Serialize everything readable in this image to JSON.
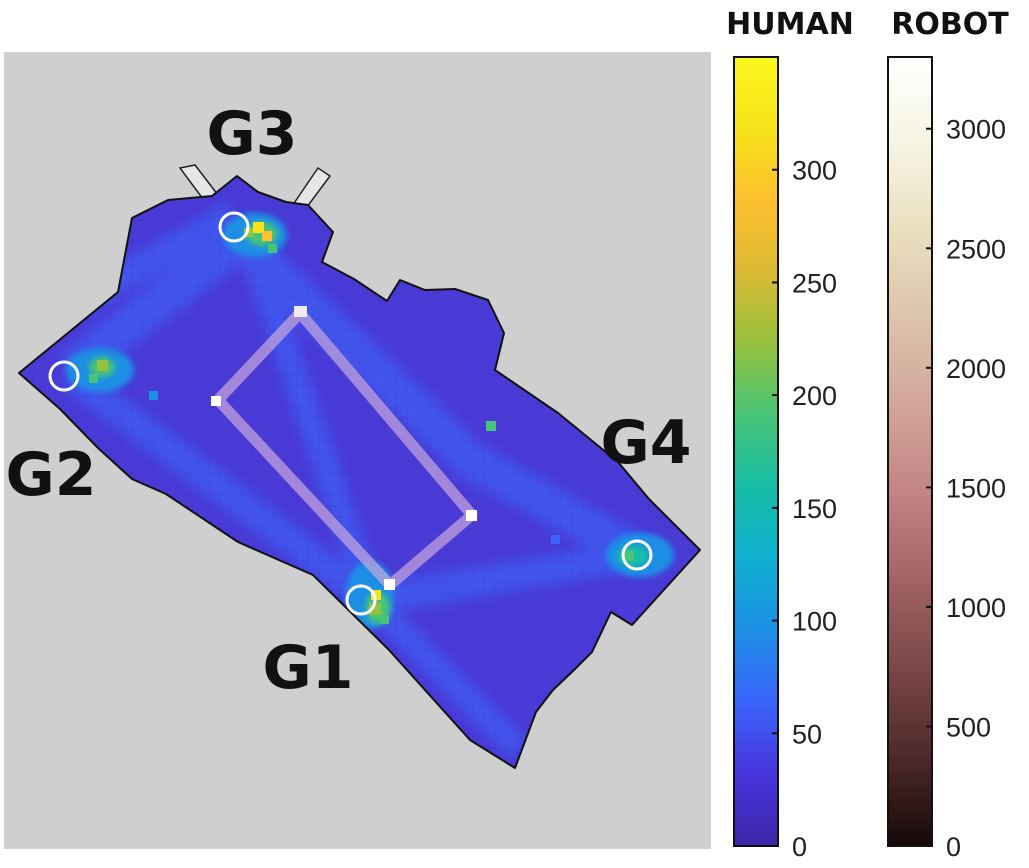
{
  "chart_data": {
    "type": "heatmap",
    "title": "",
    "xlabel": "",
    "ylabel": "",
    "goals": [
      {
        "id": "g1",
        "label": "G1",
        "human_value": 230
      },
      {
        "id": "g2",
        "label": "G2",
        "human_value": 200
      },
      {
        "id": "g3",
        "label": "G3",
        "human_value": 330
      },
      {
        "id": "g4",
        "label": "G4",
        "human_value": 170
      }
    ],
    "colorbars": [
      {
        "series": "human",
        "title": "HUMAN",
        "range": [
          0,
          350
        ],
        "ticks": [
          0,
          50,
          100,
          150,
          200,
          250,
          300
        ],
        "colormap": "parula",
        "colors": [
          "#3d26a8",
          "#4734dc",
          "#3b64fb",
          "#1d8fe5",
          "#10afd0",
          "#17bda7",
          "#46c477",
          "#96c13d",
          "#dbb934",
          "#fdc02f",
          "#f6e21a",
          "#fbf81c"
        ]
      },
      {
        "series": "robot",
        "title": "ROBOT",
        "range": [
          0,
          3300
        ],
        "ticks": [
          0,
          500,
          1000,
          1500,
          2000,
          2500,
          3000
        ],
        "colormap": "pink",
        "colors": [
          "#170808",
          "#4c2929",
          "#7a4646",
          "#a06262",
          "#c18383",
          "#d2a49a",
          "#dcc3aa",
          "#e9dfbe",
          "#f6f4e2",
          "#ffffff"
        ]
      }
    ],
    "background_color": "#cfcfcf",
    "map_base_color": "#4a3ad6"
  }
}
